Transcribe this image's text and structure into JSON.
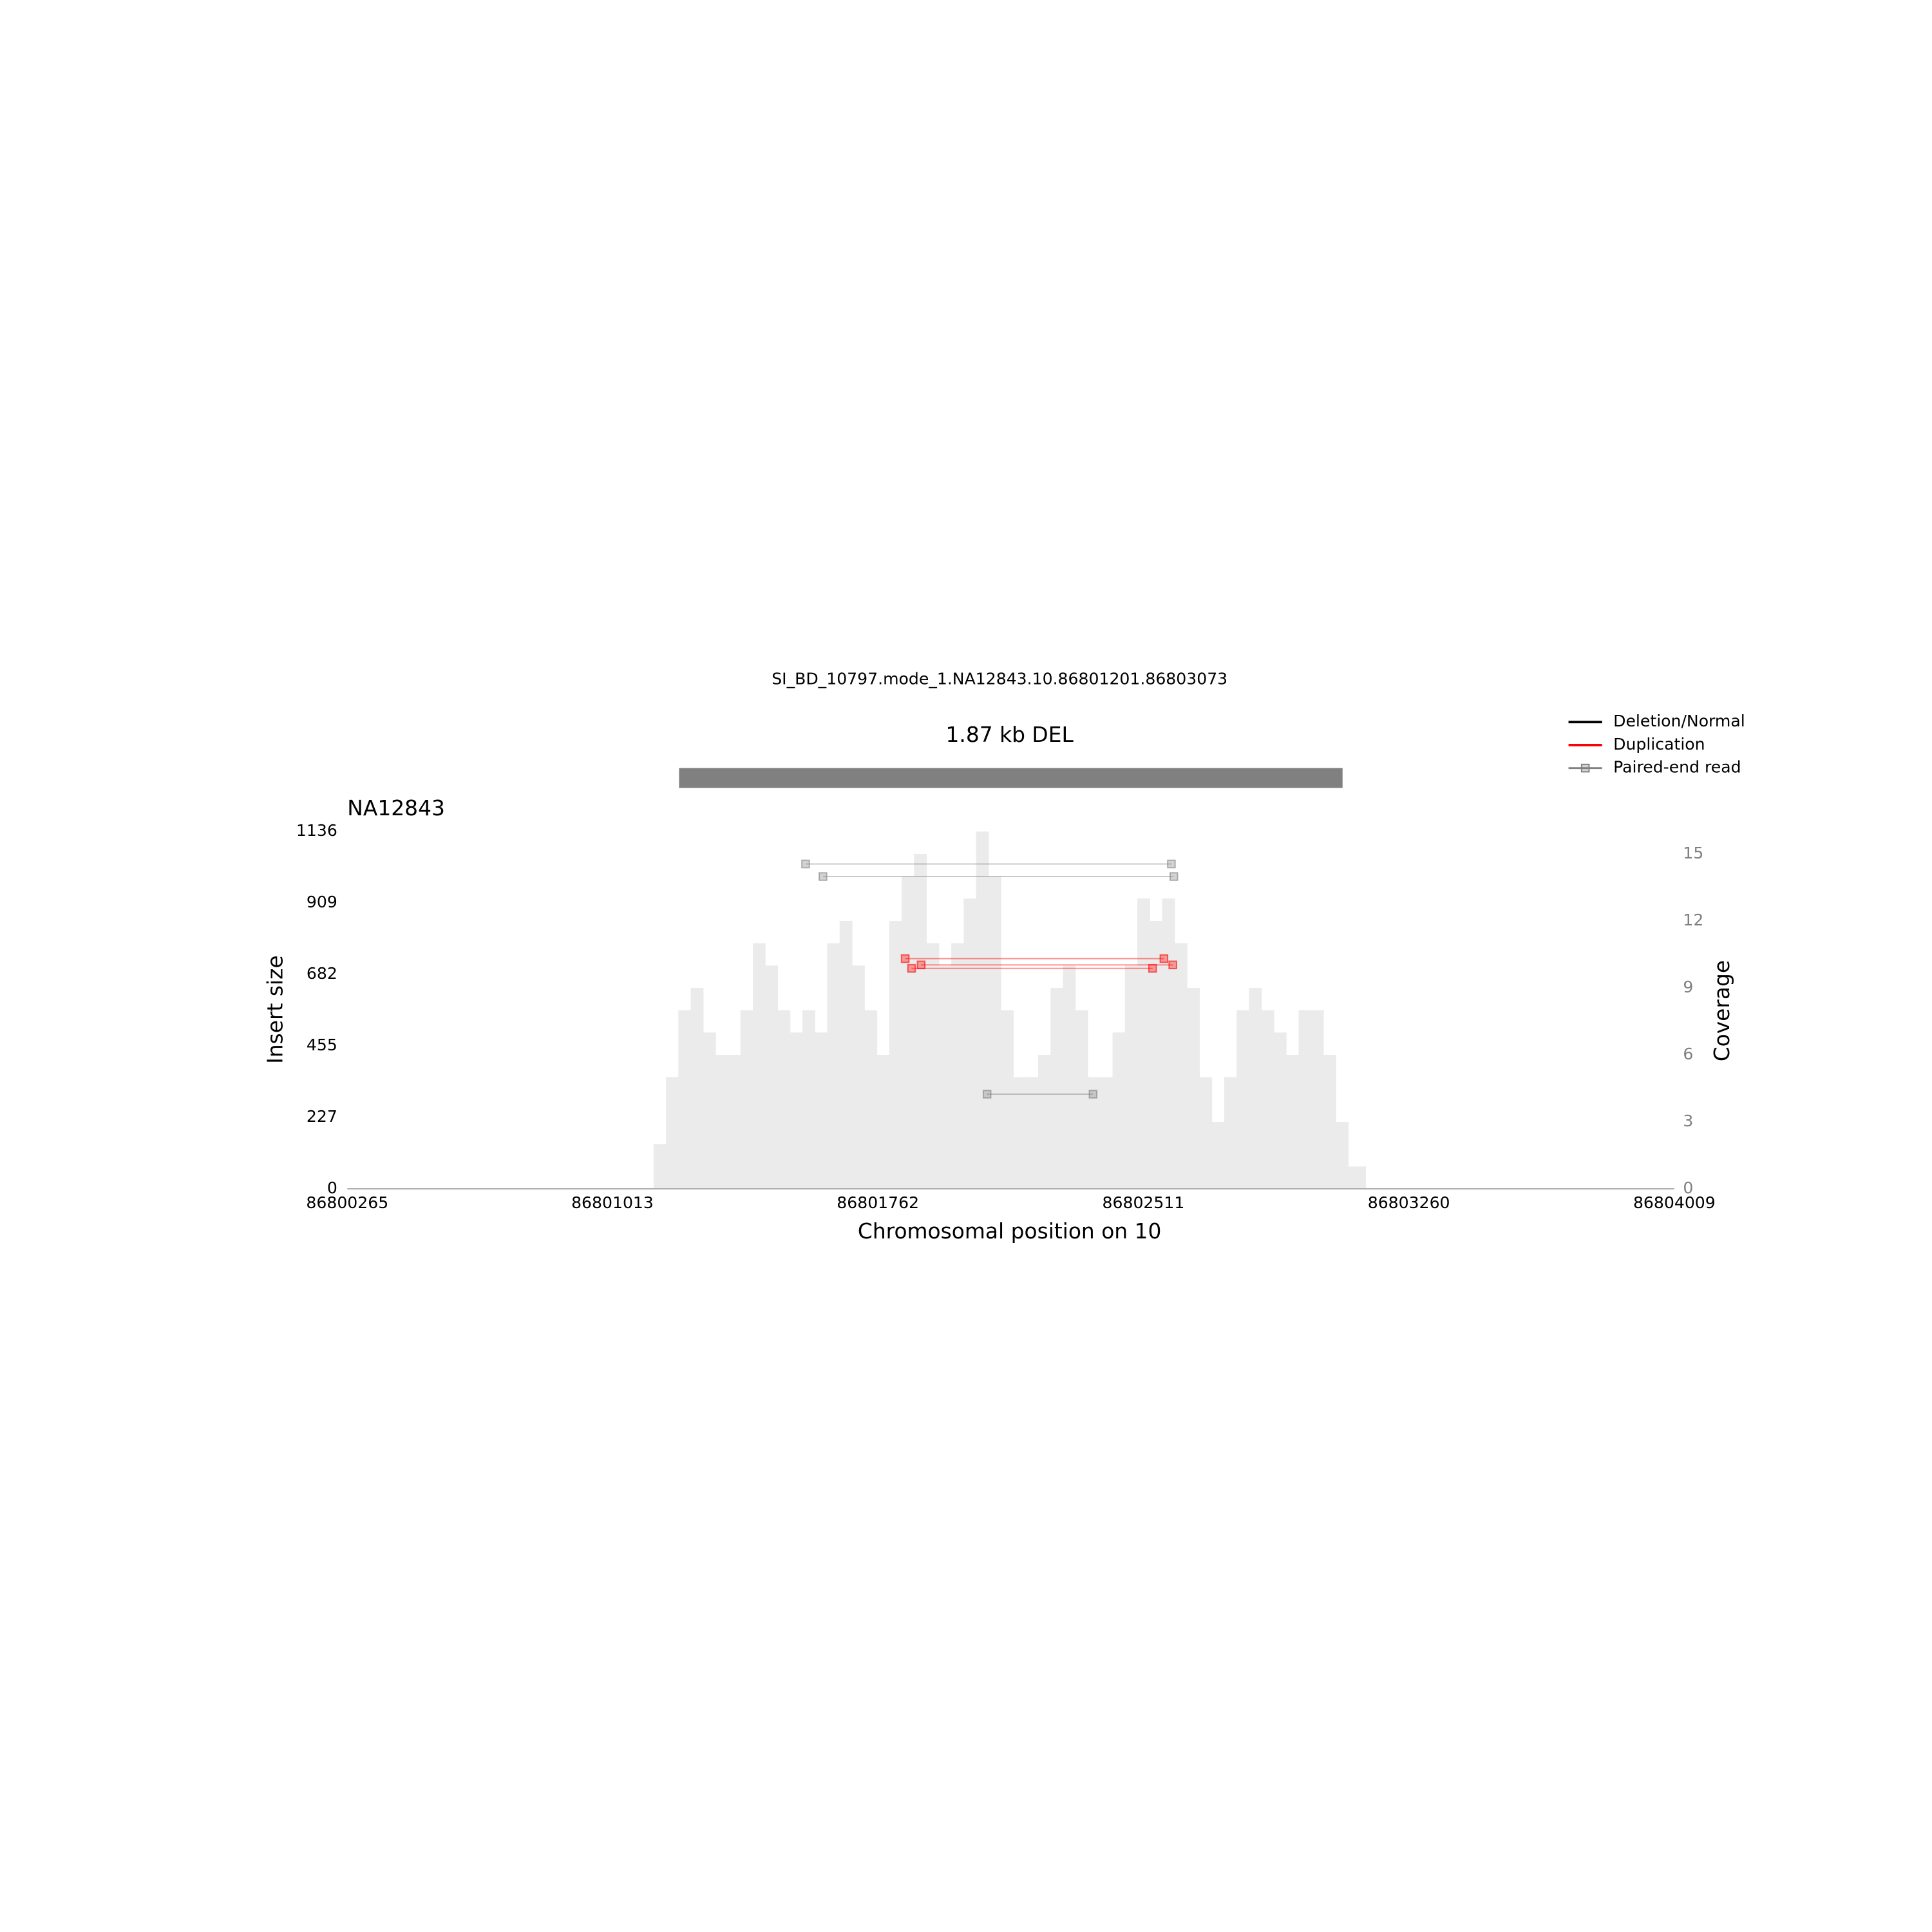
{
  "chart_data": {
    "type": "samplot",
    "title": "SI_BD_10797.mode_1.NA12843.10.86801201.86803073",
    "sv_label": "1.87 kb DEL",
    "sv_interval": [
      86801201,
      86803073
    ],
    "sv_color": "#808080",
    "sample": "NA12843",
    "xlabel": "Chromosomal position on 10",
    "ylabel": "Insert size",
    "y2label": "Coverage",
    "xlim": [
      86800265,
      86804009
    ],
    "xticks": [
      86800265,
      86801013,
      86801762,
      86802511,
      86803260,
      86804009
    ],
    "ylim": [
      0,
      1136
    ],
    "yticks": [
      0,
      227,
      455,
      682,
      909,
      1136
    ],
    "y2lim": [
      0,
      16
    ],
    "y2ticks": [
      0,
      3,
      6,
      9,
      12,
      15
    ],
    "coverage": {
      "axis": "y2",
      "color": "#ebebeb",
      "bins": [
        86801129,
        86801164,
        86801199,
        86801234,
        86801269,
        86801304,
        86801339,
        86801374,
        86801409,
        86801444,
        86801479,
        86801514,
        86801549,
        86801584,
        86801619,
        86801654,
        86801689,
        86801724,
        86801759,
        86801794,
        86801829,
        86801864,
        86801899,
        86801934,
        86801969,
        86802004,
        86802039,
        86802074,
        86802109,
        86802144,
        86802179,
        86802214,
        86802249,
        86802284,
        86802319,
        86802354,
        86802389,
        86802424,
        86802459,
        86802494,
        86802529,
        86802564,
        86802599,
        86802634,
        86802669,
        86802704,
        86802739,
        86802774,
        86802809,
        86802844,
        86802879,
        86802914,
        86802949,
        86802984,
        86803019,
        86803054,
        86803089,
        86803138
      ],
      "values": [
        2,
        5,
        8,
        9,
        7,
        6,
        6,
        8,
        11,
        10,
        8,
        7,
        8,
        7,
        11,
        12,
        10,
        8,
        6,
        12,
        14,
        15,
        11,
        10,
        11,
        13,
        16,
        14,
        8,
        5,
        5,
        6,
        9,
        10,
        8,
        5,
        5,
        7,
        10,
        13,
        12,
        13,
        11,
        9,
        5,
        3,
        5,
        8,
        9,
        8,
        7,
        6,
        8,
        8,
        6,
        3,
        1
      ]
    },
    "series": [
      {
        "name": "Deletion/Normal",
        "color": "#000000",
        "reads": [
          {
            "x": [
              86801558,
              86802590
            ],
            "y": 1033
          },
          {
            "x": [
              86801607,
              86802597
            ],
            "y": 993
          },
          {
            "x": [
              86802070,
              86802369
            ],
            "y": 301
          }
        ]
      },
      {
        "name": "Duplication",
        "color": "#ff0000",
        "reads": [
          {
            "x": [
              86801839,
              86802569
            ],
            "y": 732
          },
          {
            "x": [
              86801884,
              86802594
            ],
            "y": 712
          },
          {
            "x": [
              86801857,
              86802537
            ],
            "y": 701
          }
        ]
      }
    ],
    "marker_legend": {
      "name": "Paired-end read",
      "color": "#808080"
    }
  }
}
